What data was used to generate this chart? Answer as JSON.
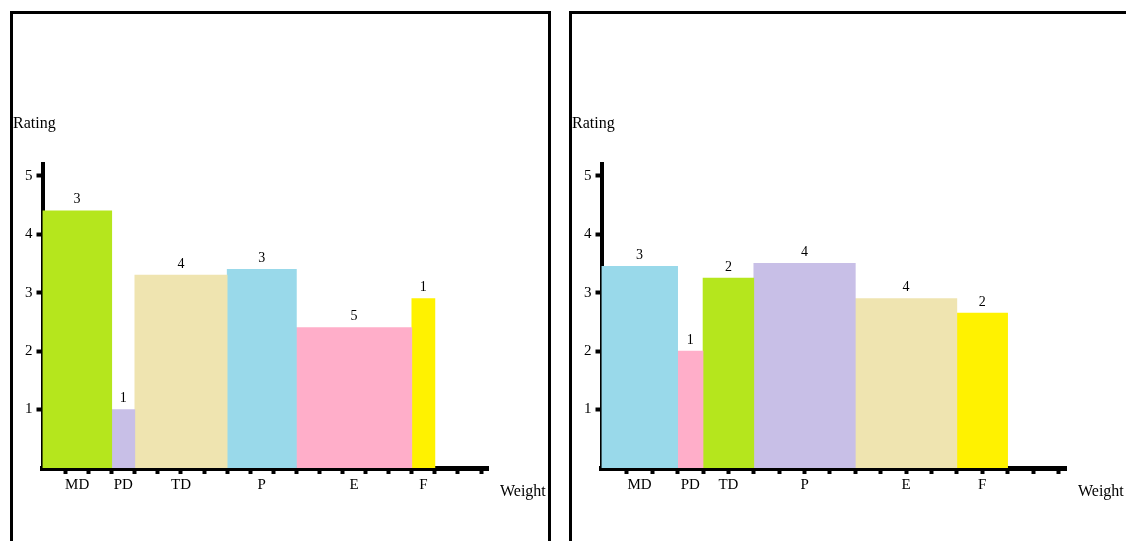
{
  "chart_data": [
    {
      "type": "bar",
      "categories": [
        "MD",
        "PD",
        "TD",
        "P",
        "E",
        "F"
      ],
      "values": [
        4.4,
        1.0,
        3.3,
        3.4,
        2.4,
        2.9
      ],
      "colors": [
        "#b5e61d",
        "#c8bfe7",
        "#efe4b0",
        "#99d9ea",
        "#ffaec9",
        "#fff200"
      ],
      "annotations": [
        {
          "text": "3",
          "x": "MD",
          "y": 4.4
        },
        {
          "text": "1",
          "x": "PD",
          "y": 1.0
        },
        {
          "text": "4",
          "x": "TD",
          "y": 3.3
        },
        {
          "text": "3",
          "x": "P",
          "y": 3.4
        },
        {
          "text": "5",
          "x": "E",
          "y": 2.4
        },
        {
          "text": "1",
          "x": "F",
          "y": 2.9
        }
      ],
      "xlabel": "Weight",
      "ylabel": "Rating",
      "ylim": [
        0,
        5.2
      ],
      "yticks": [
        1,
        2,
        3,
        4,
        5
      ]
    },
    {
      "type": "bar",
      "categories": [
        "MD",
        "PD",
        "TD",
        "P",
        "E",
        "F"
      ],
      "values": [
        3.45,
        2.0,
        3.25,
        3.5,
        2.9,
        2.65
      ],
      "colors": [
        "#99d9ea",
        "#ffaec9",
        "#b5e61d",
        "#c8bfe7",
        "#efe4b0",
        "#fff200"
      ],
      "annotations": [
        {
          "text": "3",
          "x": "MD",
          "y": 3.45
        },
        {
          "text": "1",
          "x": "PD",
          "y": 2.0
        },
        {
          "text": "2",
          "x": "TD",
          "y": 3.25
        },
        {
          "text": "4",
          "x": "P",
          "y": 3.5
        },
        {
          "text": "4",
          "x": "E",
          "y": 2.9
        },
        {
          "text": "2",
          "x": "F",
          "y": 2.65
        }
      ],
      "xlabel": "Weight",
      "ylabel": "Rating",
      "ylim": [
        0,
        5.2
      ],
      "yticks": [
        1,
        2,
        3,
        4,
        5
      ]
    }
  ]
}
